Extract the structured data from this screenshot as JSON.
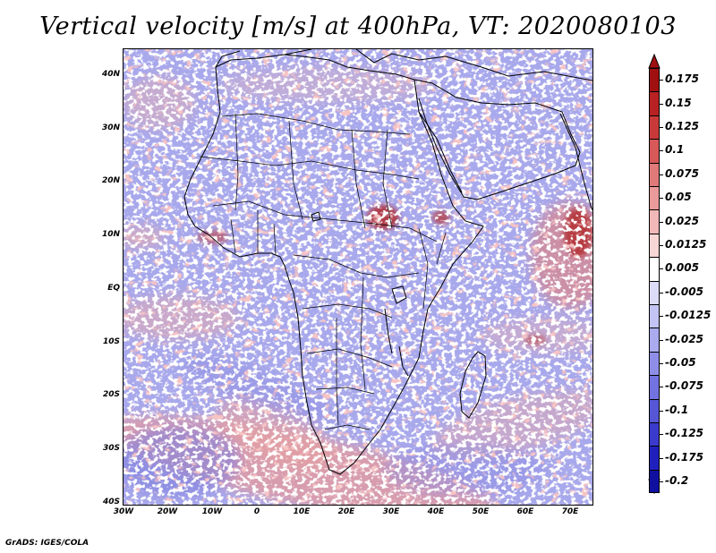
{
  "title": "Vertical velocity [m/s] at 400hPa, VT: 2020080103",
  "credit": "GrADS: IGES/COLA",
  "map": {
    "lon_range": [
      -30,
      75
    ],
    "lat_range": [
      -40,
      45
    ],
    "lat_labels": [
      "40N",
      "30N",
      "20N",
      "10N",
      "EQ",
      "10S",
      "20S",
      "30S",
      "40S"
    ],
    "lon_labels": [
      "30W",
      "20W",
      "10W",
      "0",
      "10E",
      "20E",
      "30E",
      "40E",
      "50E",
      "60E",
      "70E"
    ]
  },
  "colorbar": {
    "labels": [
      "0.175",
      "0.15",
      "0.125",
      "0.1",
      "0.075",
      "0.05",
      "0.025",
      "0.0125",
      "0.005",
      "-0.005",
      "-0.0125",
      "-0.025",
      "-0.05",
      "-0.075",
      "-0.1",
      "-0.125",
      "-0.175",
      "-0.2"
    ],
    "colors": [
      "#a01010",
      "#b82222",
      "#c83a3a",
      "#d65858",
      "#e07a7a",
      "#ea9a9a",
      "#f2b8b8",
      "#f8d6d6",
      "#ffffff",
      "#dcdcf8",
      "#c4c4f4",
      "#aaaaee",
      "#8e8ee8",
      "#7272e0",
      "#5656d6",
      "#3a3acc",
      "#2020bc",
      "#1010a0"
    ]
  }
}
